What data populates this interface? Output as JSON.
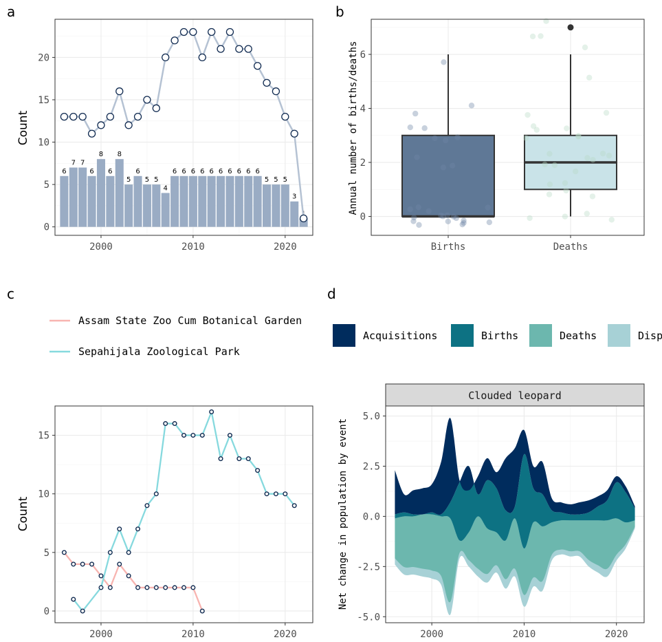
{
  "panels": {
    "a": "a",
    "b": "b",
    "c": "c",
    "d": "d"
  },
  "colors": {
    "bar_fill": "#9aacc4",
    "line_a": "#b5c2d3",
    "point_stroke": "#102a50",
    "births_box": "#5f7896",
    "deaths_box": "#c9e3e8",
    "assam": "#f8b4b0",
    "sepahijala": "#86d9de",
    "acquisitions": "#002c5d",
    "births_area": "#0d7283",
    "deaths_area": "#6cb7ae",
    "disposals_area": "#a7d1d6"
  },
  "chart_data": [
    {
      "id": "a",
      "type": "bar+line",
      "ylabel": "Count",
      "xlim": [
        1995,
        2023
      ],
      "ylim": [
        -1,
        24.5
      ],
      "xticks": [
        2000,
        2010,
        2020
      ],
      "yticks": [
        0,
        5,
        10,
        15,
        20
      ],
      "bars": {
        "x": [
          1996,
          1997,
          1998,
          1999,
          2000,
          2001,
          2002,
          2003,
          2004,
          2005,
          2006,
          2007,
          2008,
          2009,
          2010,
          2011,
          2012,
          2013,
          2014,
          2015,
          2016,
          2017,
          2018,
          2019,
          2020,
          2021,
          2022
        ],
        "values": [
          6,
          7,
          7,
          6,
          8,
          6,
          8,
          5,
          6,
          5,
          5,
          4,
          6,
          6,
          6,
          6,
          6,
          6,
          6,
          6,
          6,
          6,
          5,
          5,
          5,
          3,
          1
        ]
      },
      "line": {
        "x": [
          1996,
          1997,
          1998,
          1999,
          2000,
          2001,
          2002,
          2003,
          2004,
          2005,
          2006,
          2007,
          2008,
          2009,
          2010,
          2011,
          2012,
          2013,
          2014,
          2015,
          2016,
          2017,
          2018,
          2019,
          2020,
          2021,
          2022
        ],
        "values": [
          13,
          13,
          13,
          11,
          12,
          13,
          16,
          12,
          13,
          15,
          14,
          20,
          22,
          23,
          23,
          20,
          23,
          21,
          23,
          21,
          21,
          19,
          17,
          16,
          13,
          11,
          1
        ]
      }
    },
    {
      "id": "b",
      "type": "boxplot",
      "ylabel": "Annual number of births/deaths",
      "categories": [
        "Births",
        "Deaths"
      ],
      "ylim": [
        -0.7,
        7.3
      ],
      "yticks": [
        0,
        2,
        4,
        6
      ],
      "boxes": [
        {
          "name": "Births",
          "min": 0,
          "q1": 0,
          "median": 0,
          "q3": 3,
          "max": 6,
          "outliers": []
        },
        {
          "name": "Deaths",
          "min": 0,
          "q1": 1,
          "median": 2,
          "q3": 3,
          "max": 6,
          "outliers": [
            7
          ]
        }
      ],
      "jitter": {
        "Births": [
          0,
          0,
          0,
          0,
          0,
          0,
          0,
          0,
          0,
          0,
          0,
          0,
          0,
          0,
          0,
          0,
          0,
          2,
          2,
          2,
          3,
          3,
          3,
          3,
          3,
          4,
          4,
          6
        ],
        "Deaths": [
          0,
          0,
          0,
          0,
          1,
          1,
          1,
          1,
          1,
          2,
          2,
          2,
          2,
          2,
          2,
          2,
          2,
          3,
          3,
          3,
          3,
          3,
          3,
          4,
          4,
          5,
          6,
          7,
          7,
          7
        ]
      }
    },
    {
      "id": "c",
      "type": "line",
      "ylabel": "Count",
      "xlim": [
        1995,
        2023
      ],
      "ylim": [
        -1,
        17.5
      ],
      "xticks": [
        2000,
        2010,
        2020
      ],
      "yticks": [
        0,
        5,
        10,
        15
      ],
      "series": [
        {
          "name": "Assam State Zoo Cum Botanical Garden",
          "x": [
            1996,
            1997,
            1998,
            1999,
            2000,
            2001,
            2002,
            2003,
            2004,
            2005,
            2006,
            2007,
            2008,
            2009,
            2010,
            2011
          ],
          "values": [
            5,
            4,
            4,
            4,
            3,
            2,
            4,
            3,
            2,
            2,
            2,
            2,
            2,
            2,
            2,
            0
          ]
        },
        {
          "name": "Sepahijala Zoological Park",
          "x": [
            1997,
            1998,
            2000,
            2001,
            2002,
            2003,
            2004,
            2005,
            2006,
            2007,
            2008,
            2009,
            2010,
            2011,
            2012,
            2013,
            2014,
            2015,
            2016,
            2017,
            2018,
            2019,
            2020,
            2021
          ],
          "values": [
            1,
            0,
            2,
            5,
            7,
            5,
            7,
            9,
            10,
            16,
            16,
            15,
            15,
            15,
            17,
            13,
            15,
            13,
            13,
            12,
            10,
            10,
            10,
            9
          ]
        }
      ]
    },
    {
      "id": "d",
      "type": "area",
      "facet": "Clouded leopard",
      "ylabel": "Net change in population by event",
      "xlim": [
        1995,
        2023
      ],
      "ylim": [
        -5.3,
        5.5
      ],
      "xticks": [
        2000,
        2010,
        2020
      ],
      "yticks": [
        "5.0",
        "2.5",
        "0.0",
        "-2.5",
        "-5.0"
      ],
      "legend": [
        "Acquisitions",
        "Births",
        "Deaths",
        "Disp"
      ],
      "x": [
        1996,
        1997,
        1998,
        1999,
        2000,
        2001,
        2002,
        2003,
        2004,
        2005,
        2006,
        2007,
        2008,
        2009,
        2010,
        2011,
        2012,
        2013,
        2014,
        2015,
        2016,
        2017,
        2018,
        2019,
        2020,
        2021,
        2022
      ],
      "series": [
        {
          "name": "Acquisitions",
          "values": [
            2.3,
            1.1,
            1.3,
            1.4,
            1.6,
            2.7,
            4.9,
            1.8,
            1.3,
            2.0,
            2.9,
            2.2,
            2.9,
            3.4,
            4.3,
            2.5,
            2.7,
            0.9,
            0.7,
            0.6,
            0.7,
            0.8,
            1.0,
            1.3,
            2.0,
            1.5,
            0.5
          ]
        },
        {
          "name": "Births",
          "values": [
            0.1,
            0.2,
            0.1,
            0.1,
            0.2,
            0.1,
            0.7,
            1.7,
            2.5,
            1.1,
            1.8,
            1.4,
            0.3,
            0.5,
            3.1,
            1.4,
            1.1,
            0.3,
            0.2,
            0.1,
            0.1,
            0.2,
            0.5,
            0.8,
            1.7,
            1.2,
            0.4
          ]
        },
        {
          "name": "Deaths",
          "values": [
            -0.1,
            0,
            0,
            0.1,
            0.1,
            0,
            -0.1,
            -1.2,
            -0.8,
            0,
            -0.6,
            -0.8,
            -1.2,
            -0.1,
            -1.6,
            -0.3,
            -0.5,
            -0.3,
            -0.2,
            -0.2,
            -0.2,
            -0.2,
            -0.2,
            -0.2,
            -0.1,
            -0.3,
            -0.2
          ]
        },
        {
          "name": "Disposals",
          "values": [
            -2.4,
            -2.9,
            -2.9,
            -3.0,
            -3.1,
            -3.4,
            -4.9,
            -2.1,
            -2.5,
            -3.0,
            -3.3,
            -2.8,
            -3.6,
            -3.0,
            -4.5,
            -3.5,
            -3.7,
            -2.2,
            -1.9,
            -2.0,
            -2.0,
            -2.5,
            -2.8,
            -3.0,
            -2.2,
            -1.6,
            -0.6
          ]
        }
      ]
    }
  ]
}
